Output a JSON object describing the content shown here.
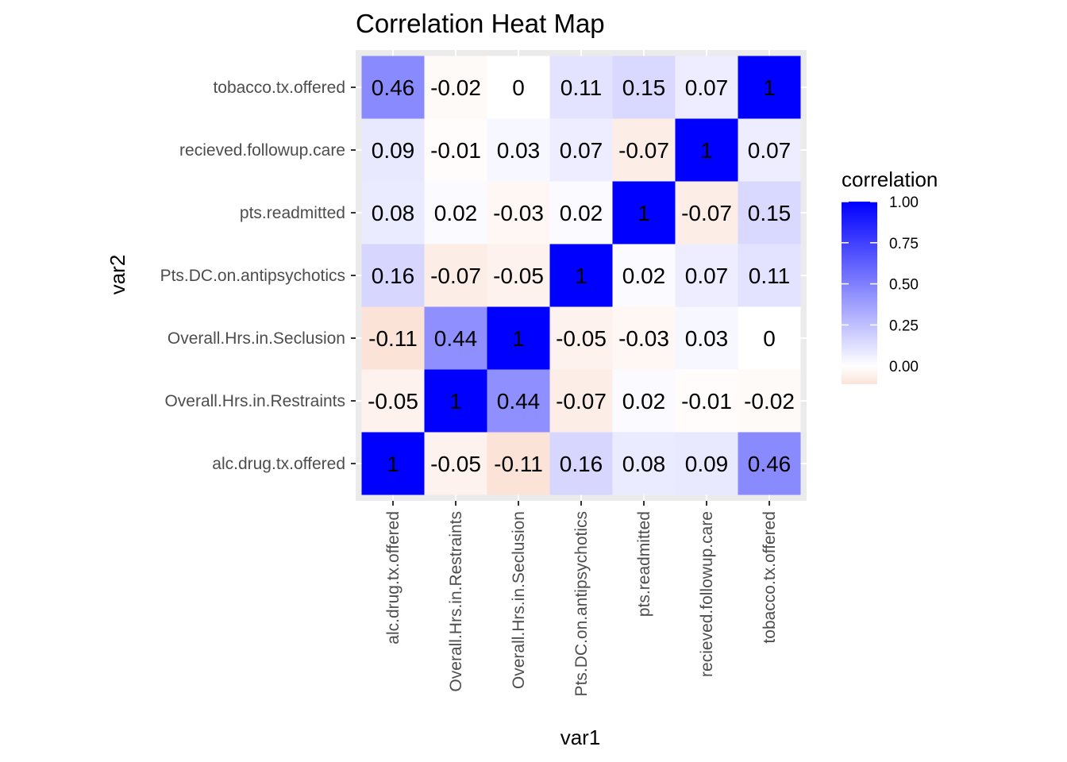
{
  "chart_data": {
    "type": "heatmap",
    "title": "Correlation Heat Map",
    "xlabel": "var1",
    "ylabel": "var2",
    "categories": [
      "alc.drug.tx.offered",
      "Overall.Hrs.in.Restraints",
      "Overall.Hrs.in.Seclusion",
      "Pts.DC.on.antipsychotics",
      "pts.readmitted",
      "recieved.followup.care",
      "tobacco.tx.offered"
    ],
    "matrix": [
      [
        1,
        -0.05,
        -0.11,
        0.16,
        0.08,
        0.09,
        0.46
      ],
      [
        -0.05,
        1,
        0.44,
        -0.07,
        0.02,
        -0.01,
        -0.02
      ],
      [
        -0.11,
        0.44,
        1,
        -0.05,
        -0.03,
        0.03,
        0
      ],
      [
        0.16,
        -0.07,
        -0.05,
        1,
        0.02,
        0.07,
        0.11
      ],
      [
        0.08,
        0.02,
        -0.03,
        0.02,
        1,
        -0.07,
        0.15
      ],
      [
        0.09,
        -0.01,
        0.03,
        0.07,
        -0.07,
        1,
        0.07
      ],
      [
        0.46,
        -0.02,
        0,
        0.11,
        0.15,
        0.07,
        1
      ]
    ],
    "legend": {
      "title": "correlation",
      "ticks": [
        1.0,
        0.75,
        0.5,
        0.25,
        0.0
      ],
      "tick_labels": [
        "1.00",
        "0.75",
        "0.50",
        "0.25",
        "0.00"
      ],
      "range": [
        -0.11,
        1.0
      ],
      "placement": "right"
    },
    "colors": {
      "high": "#0000ff",
      "mid": "#ffffff",
      "low": "#fbe3d8",
      "panel_background": "#ebebeb",
      "tick_text": "#4d4d4d"
    }
  }
}
